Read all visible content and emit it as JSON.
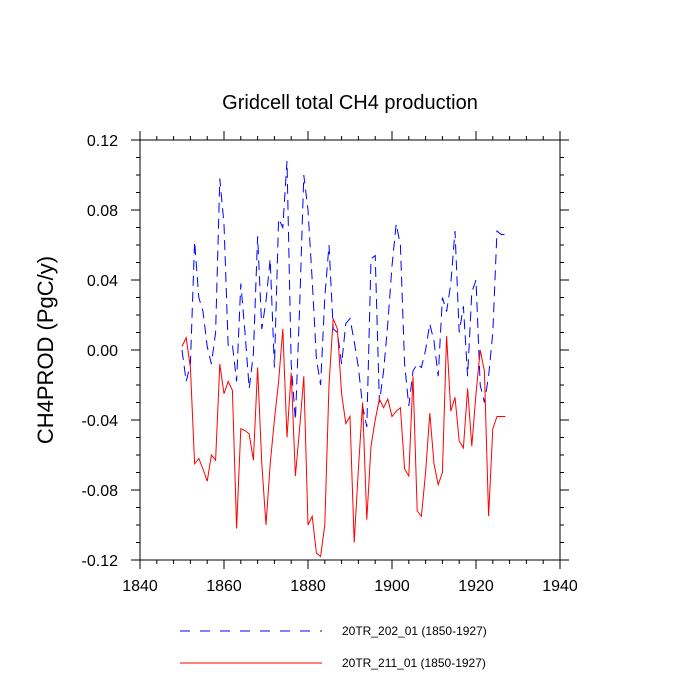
{
  "chart_data": {
    "type": "line",
    "title": "Gridcell total CH4 production",
    "xlabel": "",
    "ylabel": "CH4PROD  (PgC/y)",
    "xlim": [
      1840,
      1940
    ],
    "ylim": [
      -0.12,
      0.12
    ],
    "xticks": [
      1840,
      1860,
      1880,
      1900,
      1920,
      1940
    ],
    "xtick_labels": [
      "1840",
      "1860",
      "1880",
      "1900",
      "1920",
      "1940"
    ],
    "yticks": [
      -0.12,
      -0.08,
      -0.04,
      0.0,
      0.04,
      0.08,
      0.12
    ],
    "ytick_labels": [
      "-0.12",
      "-0.08",
      "-0.04",
      "0.00",
      "0.04",
      "0.08",
      "0.12"
    ],
    "legend_position": "bottom",
    "series": [
      {
        "name": "20TR_202_01 (1850-1927)",
        "color": "#0000ff",
        "style": "dashed",
        "x": [
          1850,
          1851,
          1852,
          1853,
          1854,
          1855,
          1856,
          1857,
          1858,
          1859,
          1860,
          1861,
          1862,
          1863,
          1864,
          1865,
          1866,
          1867,
          1868,
          1869,
          1870,
          1871,
          1872,
          1873,
          1874,
          1875,
          1876,
          1877,
          1878,
          1879,
          1880,
          1881,
          1882,
          1883,
          1884,
          1885,
          1886,
          1887,
          1888,
          1889,
          1890,
          1891,
          1892,
          1893,
          1894,
          1895,
          1896,
          1897,
          1898,
          1899,
          1900,
          1901,
          1902,
          1903,
          1904,
          1905,
          1906,
          1907,
          1908,
          1909,
          1910,
          1911,
          1912,
          1913,
          1914,
          1915,
          1916,
          1917,
          1918,
          1919,
          1920,
          1921,
          1922,
          1923,
          1924,
          1925,
          1926,
          1927
        ],
        "values": [
          0.0,
          -0.018,
          -0.008,
          0.062,
          0.03,
          0.022,
          0.002,
          -0.008,
          0.01,
          0.098,
          0.072,
          0.002,
          0.003,
          -0.018,
          0.038,
          0.01,
          -0.022,
          -0.002,
          0.065,
          0.012,
          0.028,
          0.052,
          -0.01,
          0.075,
          0.07,
          0.108,
          -0.008,
          -0.04,
          0.024,
          0.1,
          0.08,
          0.04,
          -0.005,
          -0.02,
          0.03,
          0.06,
          0.012,
          0.01,
          -0.008,
          0.015,
          0.018,
          0.005,
          -0.01,
          -0.032,
          -0.044,
          0.052,
          0.054,
          -0.03,
          -0.012,
          0.015,
          0.048,
          0.072,
          0.06,
          -0.008,
          -0.032,
          -0.012,
          -0.008,
          -0.01,
          0.0,
          0.015,
          0.005,
          -0.015,
          0.03,
          0.022,
          0.038,
          0.068,
          0.01,
          0.025,
          -0.015,
          0.033,
          0.04,
          -0.02,
          -0.03,
          -0.015,
          0.01,
          0.068,
          0.066,
          0.066
        ]
      },
      {
        "name": "20TR_211_01 (1850-1927)",
        "color": "#ff0000",
        "style": "solid",
        "x": [
          1850,
          1851,
          1852,
          1853,
          1854,
          1855,
          1856,
          1857,
          1858,
          1859,
          1860,
          1861,
          1862,
          1863,
          1864,
          1865,
          1866,
          1867,
          1868,
          1869,
          1870,
          1871,
          1872,
          1873,
          1874,
          1875,
          1876,
          1877,
          1878,
          1879,
          1880,
          1881,
          1882,
          1883,
          1884,
          1885,
          1886,
          1887,
          1888,
          1889,
          1890,
          1891,
          1892,
          1893,
          1894,
          1895,
          1896,
          1897,
          1898,
          1899,
          1900,
          1901,
          1902,
          1903,
          1904,
          1905,
          1906,
          1907,
          1908,
          1909,
          1910,
          1911,
          1912,
          1913,
          1914,
          1915,
          1916,
          1917,
          1918,
          1919,
          1920,
          1921,
          1922,
          1923,
          1924,
          1925,
          1926,
          1927
        ],
        "values": [
          0.002,
          0.007,
          -0.01,
          -0.065,
          -0.062,
          -0.068,
          -0.075,
          -0.06,
          -0.063,
          -0.008,
          -0.025,
          -0.018,
          -0.023,
          -0.102,
          -0.045,
          -0.046,
          -0.048,
          -0.063,
          -0.01,
          -0.065,
          -0.1,
          -0.065,
          -0.04,
          -0.018,
          0.012,
          -0.05,
          -0.013,
          -0.072,
          -0.045,
          -0.015,
          -0.1,
          -0.095,
          -0.116,
          -0.118,
          -0.1,
          -0.02,
          0.018,
          0.012,
          -0.025,
          -0.042,
          -0.038,
          -0.11,
          -0.068,
          -0.03,
          -0.097,
          -0.055,
          -0.04,
          -0.028,
          -0.033,
          -0.028,
          -0.038,
          -0.035,
          -0.033,
          -0.068,
          -0.072,
          -0.015,
          -0.092,
          -0.095,
          -0.07,
          -0.036,
          -0.065,
          -0.077,
          -0.07,
          0.008,
          -0.035,
          -0.027,
          -0.052,
          -0.056,
          -0.022,
          -0.055,
          -0.025,
          0.0,
          -0.012,
          -0.095,
          -0.045,
          -0.038,
          -0.038,
          -0.038
        ]
      }
    ]
  }
}
